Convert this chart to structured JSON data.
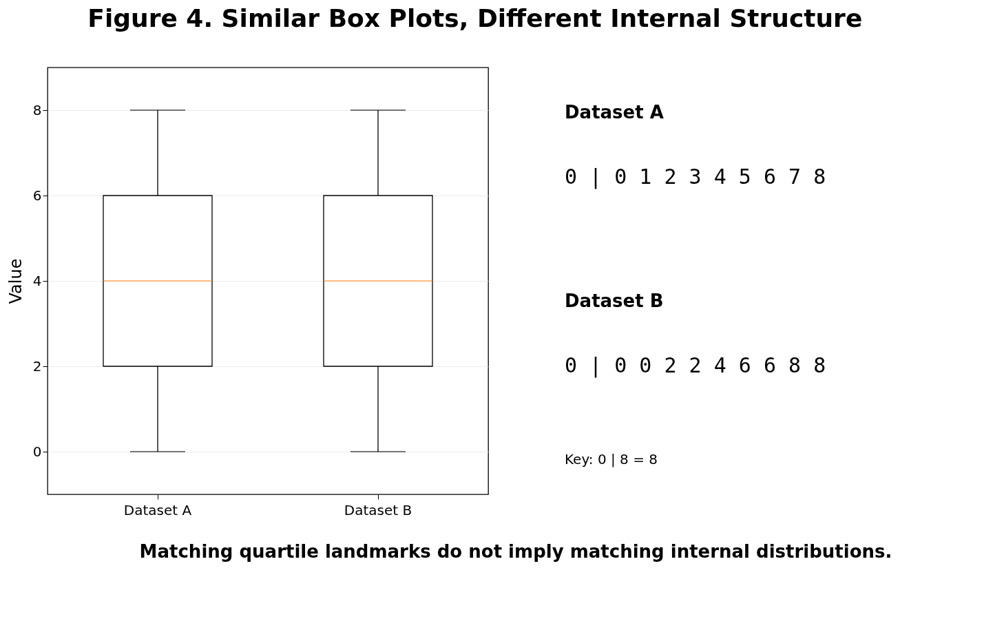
{
  "chart_data": [
    {
      "type": "box",
      "title": "Figure 4. Similar Box Plots, Different Internal Structure",
      "ylabel": "Value",
      "categories": [
        "Dataset A",
        "Dataset B"
      ],
      "boxes": [
        {
          "low": 0,
          "q1": 2,
          "median": 4,
          "q3": 6,
          "high": 8
        },
        {
          "low": 0,
          "q1": 2,
          "median": 4,
          "q3": 6,
          "high": 8
        }
      ],
      "ylim": [
        -1,
        9
      ],
      "yticks": [
        0,
        2,
        4,
        6,
        8
      ],
      "grid": "y",
      "annotations": [
        "Matching quartile landmarks do not imply matching internal distributions."
      ]
    },
    {
      "type": "other",
      "annotations": [
        "Dataset A",
        "0 | 0 1 2 3 4 5 6 7 8",
        "Dataset B",
        "0 | 0 0 2 2 4 6 6 8 8",
        "Key: 0 | 8 = 8"
      ]
    }
  ]
}
